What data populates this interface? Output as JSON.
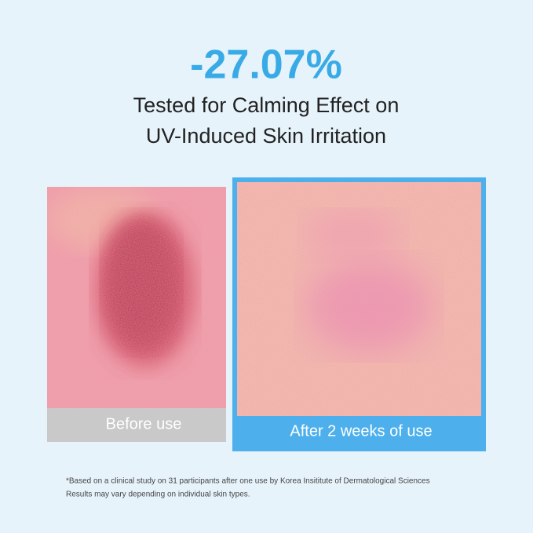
{
  "headline": "-27.07%",
  "subtitle": {
    "lines": [
      "Tested for Calming Effect on",
      "UV-Induced Skin Irritation"
    ]
  },
  "before": {
    "label": "Before use"
  },
  "after": {
    "label": "After 2 weeks of use"
  },
  "footnote": {
    "lines": [
      "*Based on a clinical study on 31 participants after one use by Korea Insititute of Dermatological Sciences",
      "Results may vary depending on individual skin types."
    ]
  }
}
